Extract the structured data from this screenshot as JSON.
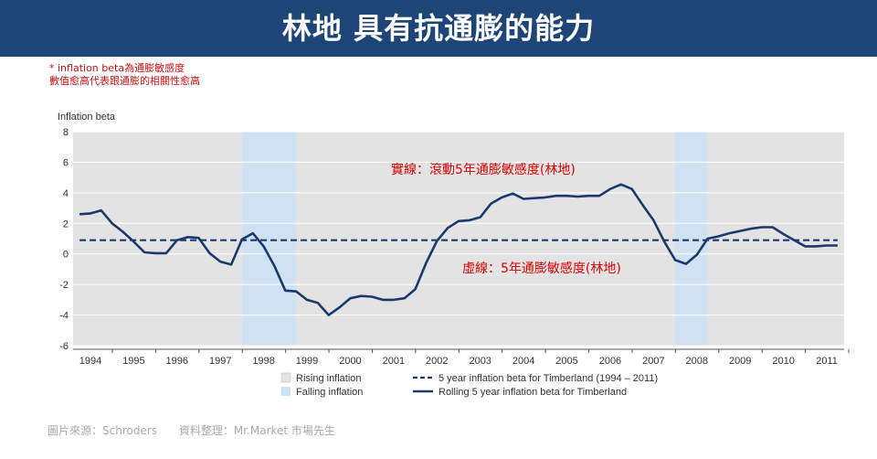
{
  "header": {
    "title": "林地 具有抗通膨的能力"
  },
  "note": {
    "line1": "* inflation  beta為通膨敏感度",
    "line2": "數值愈高代表跟通膨的相關性愈高"
  },
  "footer": {
    "source": "圖片來源：Schroders",
    "compiled": "資料整理：Mr.Market 市場先生"
  },
  "colors": {
    "header_bg": "#1d4577",
    "line": "#1a3a6e",
    "rising_band": "#e3e3e3",
    "falling_band": "#cfe2f4",
    "annotation": "#dd0000"
  },
  "chart_data": {
    "type": "line",
    "ylabel": "Inflation beta",
    "ylim": [
      -6,
      8
    ],
    "yticks": [
      8,
      6,
      4,
      2,
      0,
      -2,
      -4,
      -6
    ],
    "xlim": [
      1993.6,
      2011.4
    ],
    "xticks": [
      "1994",
      "1995",
      "1996",
      "1997",
      "1998",
      "1999",
      "2000",
      "2001",
      "2002",
      "2003",
      "2004",
      "2005",
      "2006",
      "2007",
      "2008",
      "2009",
      "2010",
      "2011"
    ],
    "background_bands": [
      {
        "type": "rising",
        "from": 1993.6,
        "to": 2011.4
      },
      {
        "type": "falling",
        "from": 1997.5,
        "to": 1998.75
      },
      {
        "type": "falling",
        "from": 2007.5,
        "to": 2008.25
      }
    ],
    "series": [
      {
        "name": "Rolling 5 year inflation beta for Timberland",
        "style": "solid",
        "x": [
          1993.75,
          1994.0,
          1994.25,
          1994.5,
          1994.75,
          1995.0,
          1995.25,
          1995.5,
          1995.75,
          1996.0,
          1996.25,
          1996.5,
          1996.75,
          1997.0,
          1997.25,
          1997.5,
          1997.75,
          1998.0,
          1998.25,
          1998.5,
          1998.75,
          1999.0,
          1999.25,
          1999.5,
          1999.75,
          2000.0,
          2000.25,
          2000.5,
          2000.75,
          2001.0,
          2001.25,
          2001.5,
          2001.75,
          2002.0,
          2002.25,
          2002.5,
          2002.75,
          2003.0,
          2003.25,
          2003.5,
          2003.75,
          2004.0,
          2004.25,
          2004.5,
          2004.75,
          2005.0,
          2005.25,
          2005.5,
          2005.75,
          2006.0,
          2006.25,
          2006.5,
          2006.75,
          2007.0,
          2007.25,
          2007.5,
          2007.75,
          2008.0,
          2008.25,
          2008.5,
          2008.75,
          2009.0,
          2009.25,
          2009.5,
          2009.75,
          2010.0,
          2010.25,
          2010.5,
          2010.75,
          2011.0,
          2011.25
        ],
        "values": [
          2.6,
          2.65,
          2.85,
          2.0,
          1.45,
          0.8,
          0.1,
          0.05,
          0.05,
          0.9,
          1.1,
          1.05,
          0.05,
          -0.5,
          -0.7,
          0.95,
          1.35,
          0.5,
          -0.8,
          -2.4,
          -2.45,
          -3.0,
          -3.2,
          -4.0,
          -3.5,
          -2.9,
          -2.75,
          -2.8,
          -3.0,
          -3.0,
          -2.9,
          -2.3,
          -0.6,
          0.85,
          1.7,
          2.15,
          2.2,
          2.4,
          3.3,
          3.7,
          3.95,
          3.6,
          3.65,
          3.7,
          3.8,
          3.8,
          3.75,
          3.8,
          3.8,
          4.25,
          4.55,
          4.25,
          3.2,
          2.2,
          0.8,
          -0.4,
          -0.65,
          -0.05,
          1.0,
          1.15,
          1.35,
          1.5,
          1.65,
          1.75,
          1.75,
          1.3,
          0.9,
          0.5,
          0.5,
          0.55,
          0.55
        ]
      },
      {
        "name": "5 year inflation beta for Timberland (1994 – 2011)",
        "style": "dashed",
        "x": [
          1993.75,
          2011.25
        ],
        "values": [
          0.9,
          0.9
        ]
      }
    ],
    "legend": [
      {
        "label": "Rising inflation",
        "kind": "swatch-rising"
      },
      {
        "label": "5 year inflation beta for Timberland (1994 – 2011)",
        "kind": "dashed"
      },
      {
        "label": "Falling inflation",
        "kind": "swatch-falling"
      },
      {
        "label": "Rolling 5 year inflation beta for Timberland",
        "kind": "solid"
      }
    ],
    "annotations": {
      "solid": "實線：滾動5年通膨敏感度(林地)",
      "dashed": "虛線：5年通膨敏感度(林地)"
    }
  }
}
